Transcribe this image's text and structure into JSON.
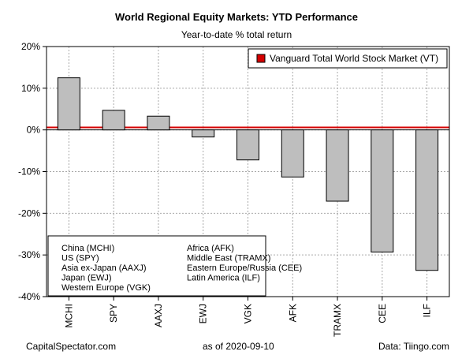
{
  "chart_data": {
    "type": "bar",
    "title": "World Regional Equity Markets: YTD Performance",
    "subtitle": "Year-to-date % total return",
    "categories": [
      "MCHI",
      "SPY",
      "AAXJ",
      "EWJ",
      "VGK",
      "AFK",
      "TRAMX",
      "CEE",
      "ILF"
    ],
    "values": [
      12.5,
      4.7,
      3.3,
      -1.7,
      -7.2,
      -11.3,
      -17.1,
      -29.3,
      -33.7
    ],
    "ylim": [
      -40,
      20
    ],
    "yticks": [
      20,
      10,
      0,
      -10,
      -20,
      -30,
      -40
    ],
    "ytick_labels": [
      "20%",
      "10%",
      "0%",
      "-10%",
      "-20%",
      "-30%",
      "-40%"
    ],
    "grid": true,
    "bar_color": "#bebebe",
    "reference_line": {
      "label": "Vanguard Total World Stock Market (VT)",
      "value": 0.6,
      "color": "#d40000"
    },
    "legend_position": "top-right",
    "key_entries": [
      "China (MCHI)",
      "US (SPY)",
      "Asia ex-Japan (AAXJ)",
      "Japan (EWJ)",
      "Western Europe (VGK)",
      "Africa (AFK)",
      "Middle East (TRAMX)",
      "Eastern Europe/Russia (CEE)",
      "Latin America (ILF)"
    ]
  },
  "footer": {
    "source_site": "CapitalSpectator.com",
    "as_of": "as of   2020-09-10",
    "data_source": "Data: Tiingo.com"
  }
}
